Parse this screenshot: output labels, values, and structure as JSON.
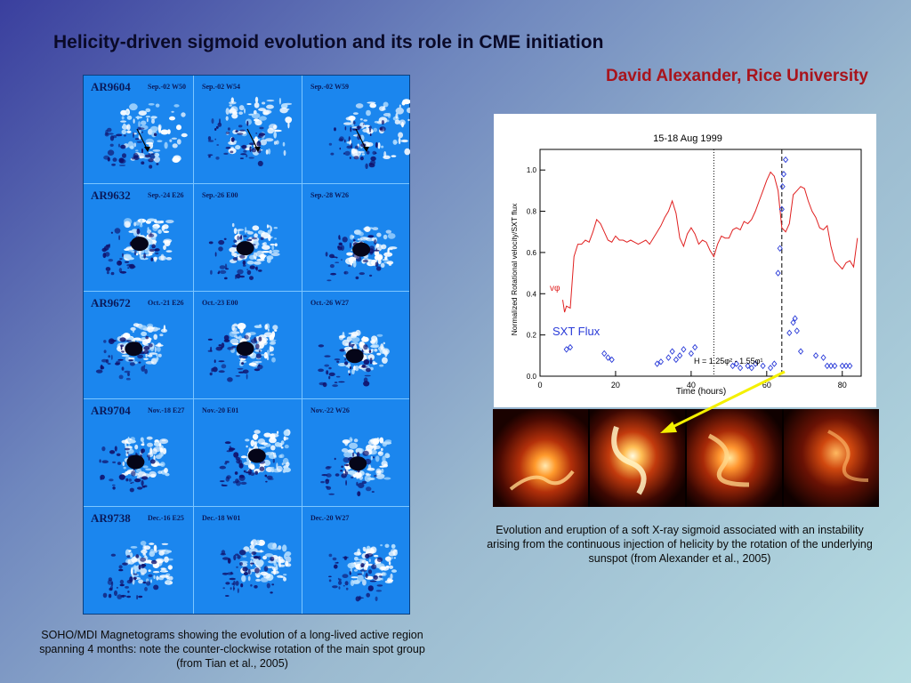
{
  "title": "Helicity-driven sigmoid evolution and its role in CME initiation",
  "author": "David Alexander, Rice University",
  "magnetograms": {
    "rows": [
      {
        "region": "AR9604",
        "dates": [
          "Sep.-02 W50",
          "Sep.-02 W54",
          "Sep.-02 W59"
        ]
      },
      {
        "region": "AR9632",
        "dates": [
          "Sep.-24 E26",
          "Sep.-26 E00",
          "Sep.-28 W26"
        ]
      },
      {
        "region": "AR9672",
        "dates": [
          "Oct.-21 E26",
          "Oct.-23  E00",
          "Oct.-26 W27"
        ]
      },
      {
        "region": "AR9704",
        "dates": [
          "Nov.-18 E27",
          "Nov.-20  E01",
          "Nov.-22  W26"
        ]
      },
      {
        "region": "AR9738",
        "dates": [
          "Dec.-16 E25",
          "Dec.-18  W01",
          "Dec.-20  W27"
        ]
      }
    ],
    "colors": {
      "background": "#1b86ee",
      "positive": "#ffffff",
      "negative": "#10106a"
    }
  },
  "caption_left": "SOHO/MDI Magnetograms showing the evolution of a long-lived active region spanning 4 months: note the counter-clockwise rotation of the main spot group  (from Tian et al., 2005)",
  "caption_right": "Evolution and eruption of a soft X-ray sigmoid associated with an instability arising from the continuous injection of helicity by the rotation of the underlying sunspot (from Alexander et al., 2005)",
  "chart_data": {
    "type": "line",
    "title": "15-18 Aug 1999",
    "xlabel": "Time (hours)",
    "ylabel": "Normalized Rotational velocity/SXT flux",
    "xlim": [
      0,
      85
    ],
    "ylim": [
      0,
      1.1
    ],
    "xticks": [
      0,
      20,
      40,
      60,
      80
    ],
    "yticks": [
      0.0,
      0.2,
      0.4,
      0.6,
      0.8,
      1.0
    ],
    "vlines": [
      {
        "x": 46,
        "style": "dotted"
      },
      {
        "x": 64,
        "style": "dashed"
      }
    ],
    "annotations": [
      "vφ",
      "SXT Flux",
      "H = 1.25φ² - 1.55φ¹"
    ],
    "series": [
      {
        "name": "vφ",
        "style": "line",
        "color": "#e02020",
        "x": [
          6,
          6.5,
          7,
          8,
          9,
          10,
          11,
          12,
          13,
          14,
          15,
          16,
          17,
          18,
          19,
          20,
          21,
          22,
          23,
          24,
          25,
          26,
          27,
          28,
          29,
          30,
          31,
          32,
          33,
          34,
          35,
          36,
          37,
          38,
          39,
          40,
          41,
          42,
          43,
          44,
          45,
          46,
          47,
          48,
          49,
          50,
          51,
          52,
          53,
          54,
          55,
          56,
          57,
          58,
          59,
          60,
          61,
          62,
          63,
          64,
          65,
          66,
          67,
          68,
          69,
          70,
          71,
          72,
          73,
          74,
          75,
          76,
          77,
          78,
          79,
          80,
          81,
          82,
          83,
          84
        ],
        "y": [
          0.37,
          0.31,
          0.34,
          0.33,
          0.58,
          0.64,
          0.64,
          0.66,
          0.65,
          0.7,
          0.76,
          0.74,
          0.7,
          0.66,
          0.65,
          0.68,
          0.66,
          0.66,
          0.65,
          0.66,
          0.65,
          0.64,
          0.65,
          0.66,
          0.64,
          0.67,
          0.7,
          0.73,
          0.77,
          0.8,
          0.85,
          0.79,
          0.67,
          0.63,
          0.69,
          0.72,
          0.69,
          0.64,
          0.66,
          0.65,
          0.61,
          0.58,
          0.64,
          0.68,
          0.67,
          0.67,
          0.71,
          0.72,
          0.71,
          0.75,
          0.74,
          0.76,
          0.8,
          0.85,
          0.9,
          0.95,
          0.99,
          0.97,
          0.9,
          0.72,
          0.7,
          0.74,
          0.88,
          0.9,
          0.92,
          0.91,
          0.85,
          0.8,
          0.77,
          0.72,
          0.71,
          0.73,
          0.63,
          0.56,
          0.54,
          0.52,
          0.55,
          0.56,
          0.53,
          0.67
        ]
      },
      {
        "name": "SXT Flux",
        "style": "scatter",
        "color": "#2a3bd8",
        "x": [
          7,
          8,
          17,
          18,
          19,
          31,
          32,
          34,
          35,
          36,
          37,
          38,
          40,
          41,
          51,
          52,
          53,
          55,
          56,
          57,
          59,
          61,
          62,
          63,
          63.5,
          64,
          64.2,
          64.5,
          65,
          66,
          67,
          67.5,
          68,
          69,
          73,
          75,
          76,
          77,
          78,
          80,
          81,
          82
        ],
        "y": [
          0.13,
          0.14,
          0.11,
          0.09,
          0.08,
          0.06,
          0.07,
          0.09,
          0.12,
          0.08,
          0.1,
          0.13,
          0.11,
          0.14,
          0.05,
          0.06,
          0.04,
          0.05,
          0.04,
          0.06,
          0.05,
          0.04,
          0.06,
          0.5,
          0.62,
          0.81,
          0.92,
          0.98,
          1.05,
          0.21,
          0.26,
          0.28,
          0.22,
          0.12,
          0.1,
          0.09,
          0.05,
          0.05,
          0.05,
          0.05,
          0.05,
          0.05
        ]
      }
    ]
  }
}
